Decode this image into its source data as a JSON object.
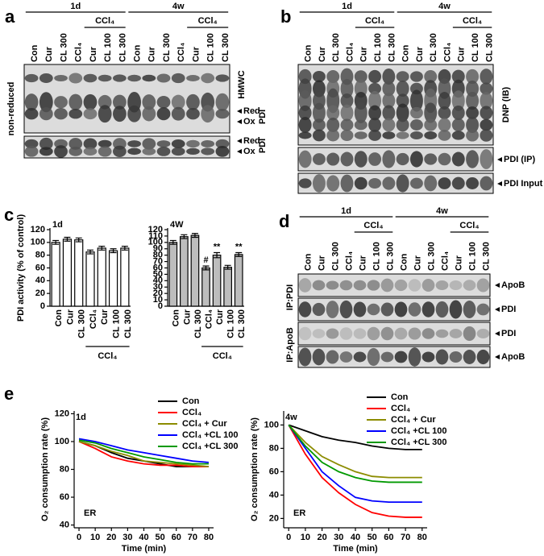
{
  "blot_panels": [
    {
      "letter": "a",
      "groups": [
        {
          "label": "1d",
          "sublabel": "CCl₄"
        },
        {
          "label": "4w",
          "sublabel": "CCl₄"
        }
      ],
      "lanes": [
        "Con",
        "Cur",
        "CL 300",
        "CCl₄",
        "Cur",
        "CL 100",
        "CL 300",
        "Con",
        "Cur",
        "CL 300",
        "CCl₄",
        "Cur",
        "CL 100",
        "CL 300"
      ],
      "side_labels": [
        "non-reduced"
      ],
      "right_labels": [
        "HMWC",
        "Red",
        "Ox",
        "PDI",
        "Red",
        "Ox",
        "PDI"
      ]
    },
    {
      "letter": "b",
      "groups": [
        {
          "label": "1d",
          "sublabel": "CCl₄"
        },
        {
          "label": "4w",
          "sublabel": "CCl₄"
        }
      ],
      "lanes": [
        "Con",
        "Cur",
        "CL 300",
        "CCl₄",
        "Cur",
        "CL 100",
        "CL 300",
        "Con",
        "Cur",
        "CL 300",
        "CCl₄",
        "Cur",
        "CL 100",
        "CL 300"
      ],
      "right_labels": [
        "DNP (IB)",
        "PDI (IP)",
        "PDI Input"
      ]
    },
    {
      "letter": "d",
      "groups": [
        {
          "label": "1d",
          "sublabel": "CCl₄"
        },
        {
          "label": "4w",
          "sublabel": "CCl₄"
        }
      ],
      "lanes": [
        "Con",
        "Cur",
        "CL 300",
        "CCl₄",
        "Cur",
        "CL 100",
        "CL 300",
        "Con",
        "Cur",
        "CL 300",
        "CCl₄",
        "Cur",
        "CL 100",
        "CL 300"
      ],
      "side_labels": [
        "IP:PDI",
        "IP:ApoB"
      ],
      "right_labels": [
        "ApoB",
        "PDI",
        "PDI",
        "ApoB"
      ]
    }
  ],
  "chart_data": [
    {
      "type": "bar",
      "panel": "c",
      "label": "1d",
      "ylabel": "PDI activity (% of control)",
      "categories": [
        "Con",
        "Cur",
        "CL 300",
        "CCl₄",
        "Cur",
        "CL 100",
        "CL 300"
      ],
      "group": "CCl₄",
      "values": [
        100,
        105,
        104,
        85,
        91,
        87,
        91
      ],
      "errors": [
        3,
        3,
        3,
        3,
        3,
        3,
        3
      ],
      "color": "#ffffff",
      "ylim": [
        0,
        120
      ],
      "yticks": [
        0,
        20,
        40,
        60,
        80,
        100,
        120
      ]
    },
    {
      "type": "bar",
      "label": "4W",
      "categories": [
        "Con",
        "Cur",
        "CL 300",
        "CCl₄",
        "Cur",
        "CL 100",
        "CL 300"
      ],
      "group": "CCl₄",
      "values": [
        100,
        109,
        111,
        60,
        80,
        61,
        81
      ],
      "errors": [
        3,
        3,
        3,
        3,
        4,
        3,
        3
      ],
      "annotations": [
        null,
        null,
        null,
        "#",
        "**",
        null,
        "**"
      ],
      "color": "#bdbdbd",
      "ylim": [
        0,
        120
      ],
      "yticks": [
        0,
        10,
        20,
        30,
        40,
        50,
        60,
        70,
        80,
        90,
        100,
        110,
        120
      ]
    },
    {
      "type": "line",
      "panel": "e",
      "label": "1d",
      "inset_label": "ER",
      "xlabel": "Time (min)",
      "ylabel": "O₂ consumption rate (%)",
      "x": [
        0,
        10,
        20,
        30,
        40,
        50,
        60,
        70,
        80
      ],
      "series": [
        {
          "name": "Con",
          "color": "#000000",
          "values": [
            100,
            97,
            92,
            88,
            86,
            84,
            82,
            82,
            82
          ]
        },
        {
          "name": "CCl₄",
          "color": "#ff0000",
          "values": [
            100,
            95,
            89,
            86,
            84,
            83,
            83,
            82,
            82
          ]
        },
        {
          "name": "CCl₄ + Cur",
          "color": "#8c8c00",
          "values": [
            100,
            97,
            93,
            90,
            86,
            85,
            84,
            83,
            82
          ]
        },
        {
          "name": "CCl₄ +CL 100",
          "color": "#0000ff",
          "values": [
            102,
            100,
            97,
            94,
            92,
            90,
            88,
            86,
            85
          ]
        },
        {
          "name": "CCl₄ +CL 300",
          "color": "#009900",
          "values": [
            101,
            99,
            95,
            92,
            89,
            87,
            85,
            84,
            84
          ]
        }
      ],
      "xlim": [
        -3,
        83
      ],
      "xticks": [
        0,
        10,
        20,
        30,
        40,
        50,
        60,
        70,
        80
      ],
      "ylim": [
        38,
        122
      ],
      "yticks": [
        40,
        60,
        80,
        100,
        120
      ]
    },
    {
      "type": "line",
      "label": "4w",
      "inset_label": "ER",
      "xlabel": "Time (min)",
      "ylabel": "O₂ consumption rate (%)",
      "x": [
        0,
        10,
        20,
        30,
        40,
        50,
        60,
        70,
        80
      ],
      "series": [
        {
          "name": "Con",
          "color": "#000000",
          "values": [
            100,
            95,
            90,
            87,
            85,
            82,
            80,
            79,
            79
          ]
        },
        {
          "name": "CCl₄",
          "color": "#ff0000",
          "values": [
            100,
            75,
            55,
            42,
            32,
            25,
            22,
            21,
            21
          ]
        },
        {
          "name": "CCl₄ + Cur",
          "color": "#8c8c00",
          "values": [
            100,
            85,
            73,
            66,
            60,
            56,
            55,
            55,
            55
          ]
        },
        {
          "name": "CCl₄ +CL 100",
          "color": "#0000ff",
          "values": [
            100,
            80,
            60,
            48,
            38,
            35,
            34,
            34,
            34
          ]
        },
        {
          "name": "CCl₄ +CL 300",
          "color": "#009900",
          "values": [
            100,
            82,
            68,
            60,
            55,
            52,
            51,
            51,
            51
          ]
        }
      ],
      "xlim": [
        -3,
        83
      ],
      "xticks": [
        0,
        10,
        20,
        30,
        40,
        50,
        60,
        70,
        80
      ],
      "ylim": [
        12,
        112
      ],
      "yticks": [
        20,
        40,
        60,
        80,
        100
      ]
    }
  ]
}
